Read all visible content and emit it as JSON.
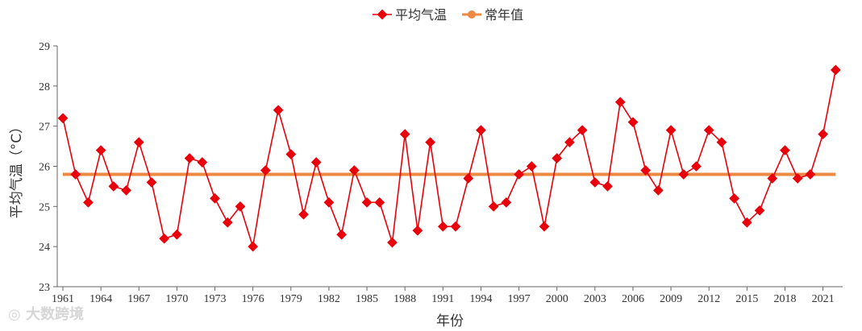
{
  "watermark": "大数跨境",
  "colors": {
    "series": "#e8000b",
    "normal": "#ec8a43",
    "axis": "#666666",
    "text": "#333333"
  },
  "chart_data": {
    "type": "line",
    "title": "",
    "xlabel": "年份",
    "ylabel": "平均气温（°C）",
    "ylim": [
      23,
      29
    ],
    "yticks": [
      23,
      24,
      25,
      26,
      27,
      28,
      29
    ],
    "xlim": [
      1961,
      2022
    ],
    "xtick_labels": [
      "1961",
      "1964",
      "1967",
      "1970",
      "1973",
      "1976",
      "1979",
      "1982",
      "1985",
      "1988",
      "1991",
      "1994",
      "1997",
      "2000",
      "2003",
      "2006",
      "2009",
      "2012",
      "2015",
      "2018",
      "2021"
    ],
    "legend_position": "top-center",
    "grid": false,
    "series": [
      {
        "name": "平均气温",
        "marker": "diamond",
        "x": [
          1961,
          1962,
          1963,
          1964,
          1965,
          1966,
          1967,
          1968,
          1969,
          1970,
          1971,
          1972,
          1973,
          1974,
          1975,
          1976,
          1977,
          1978,
          1979,
          1980,
          1981,
          1982,
          1983,
          1984,
          1985,
          1986,
          1987,
          1988,
          1989,
          1990,
          1991,
          1992,
          1993,
          1994,
          1995,
          1996,
          1997,
          1998,
          1999,
          2000,
          2001,
          2002,
          2003,
          2004,
          2005,
          2006,
          2007,
          2008,
          2009,
          2010,
          2011,
          2012,
          2013,
          2014,
          2015,
          2016,
          2017,
          2018,
          2019,
          2020,
          2021,
          2022
        ],
        "values": [
          27.2,
          25.8,
          25.1,
          26.4,
          25.5,
          25.4,
          26.6,
          25.6,
          24.2,
          24.3,
          26.2,
          26.1,
          25.2,
          24.6,
          25.0,
          24.0,
          25.9,
          27.4,
          26.3,
          24.8,
          26.1,
          25.1,
          24.3,
          25.9,
          25.1,
          25.1,
          24.1,
          26.8,
          24.4,
          26.6,
          24.5,
          24.5,
          25.7,
          26.9,
          25.0,
          25.1,
          25.8,
          26.0,
          24.5,
          26.2,
          26.6,
          26.9,
          25.6,
          25.5,
          27.6,
          27.1,
          25.9,
          25.4,
          26.9,
          25.8,
          26.0,
          26.9,
          26.6,
          25.2,
          24.6,
          24.9,
          25.7,
          26.4,
          25.7,
          25.8,
          26.8,
          28.4
        ]
      },
      {
        "name": "常年值",
        "marker": "circle",
        "constant": 25.8
      }
    ]
  }
}
